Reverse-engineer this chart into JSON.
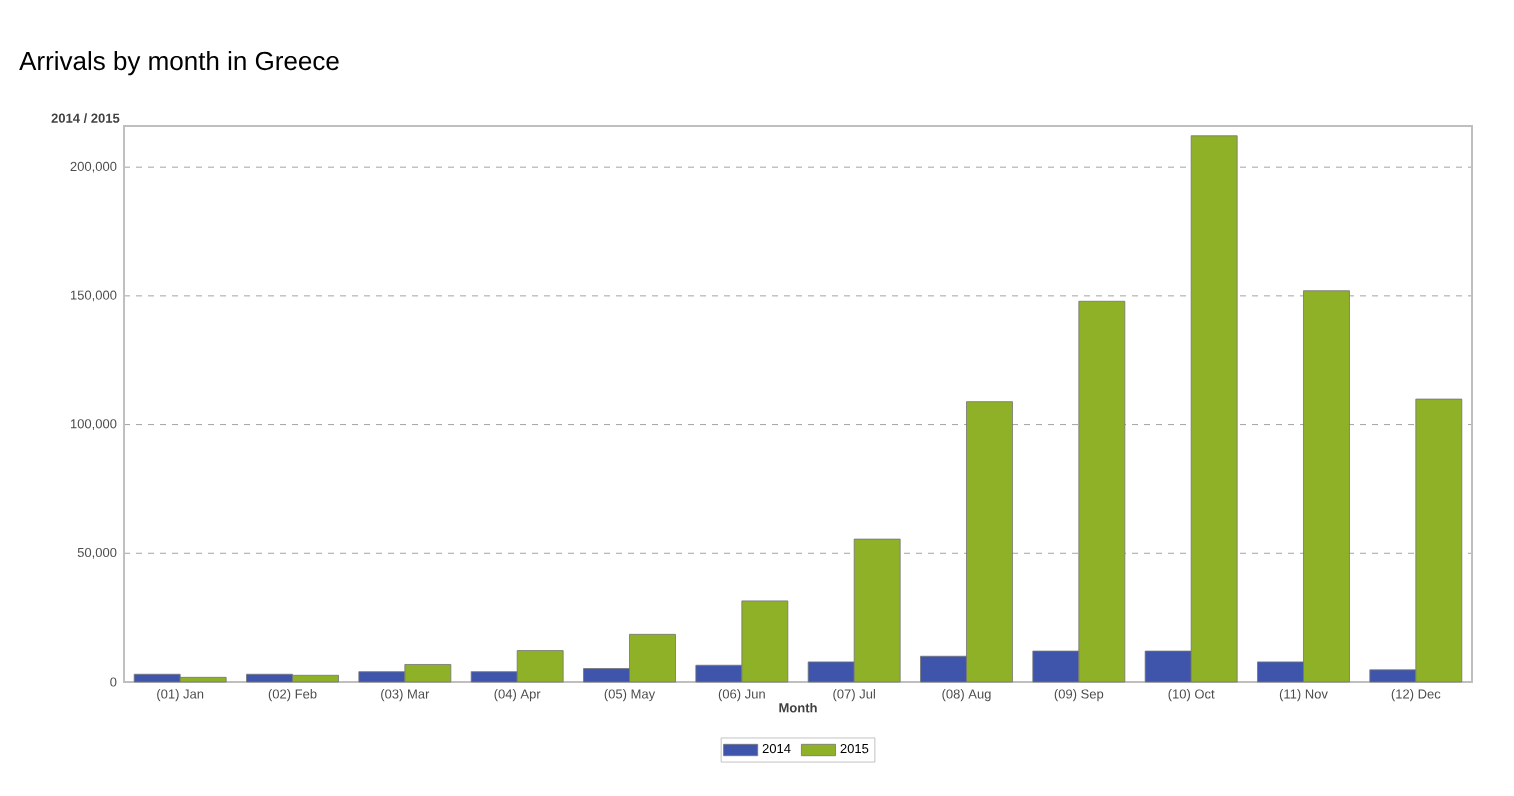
{
  "chart_data": {
    "type": "bar",
    "title": "Arrivals by month in Greece",
    "subtitle": "2014 / 2015",
    "xlabel": "Month",
    "categories": [
      "(01) Jan",
      "(02) Feb",
      "(03) Mar",
      "(04) Apr",
      "(05) May",
      "(06) Jun",
      "(07) Jul",
      "(08) Aug",
      "(09) Sep",
      "(10) Oct",
      "(11) Nov",
      "(12) Dec"
    ],
    "series": [
      {
        "name": "2014",
        "color": "#3f55ab",
        "values": [
          3000,
          3000,
          4000,
          4000,
          5200,
          6500,
          7800,
          10000,
          12000,
          12000,
          7800,
          4700
        ]
      },
      {
        "name": "2015",
        "color": "#8fb128",
        "values": [
          1800,
          2600,
          6800,
          12200,
          18500,
          31500,
          55500,
          108900,
          147900,
          212200,
          152000,
          109900
        ]
      }
    ],
    "ylim": [
      0,
      216000
    ],
    "yticks": [
      {
        "value": 0,
        "label": "0"
      },
      {
        "value": 50000,
        "label": "50,000"
      },
      {
        "value": 100000,
        "label": "100,000"
      },
      {
        "value": 150000,
        "label": "150,000"
      },
      {
        "value": 200000,
        "label": "200,000"
      }
    ],
    "grid": "y",
    "legend": "bottom"
  }
}
